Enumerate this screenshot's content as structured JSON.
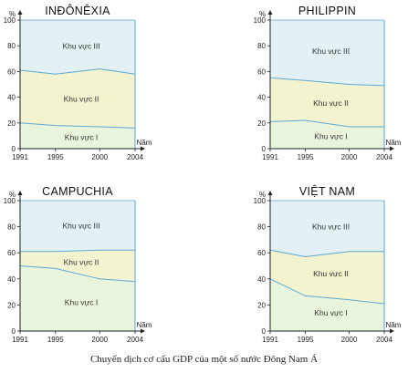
{
  "caption": "Chuyển dịch cơ cấu GDP của một số nước Đông Nam Á",
  "colors": {
    "region_1": "#e9f4dc",
    "region_2": "#f4f3cf",
    "region_3": "#e3f1f4",
    "boundary": "#5aa8d8",
    "axis": "#222222"
  },
  "chart_data": [
    {
      "type": "area",
      "title": "INĐÔNÊXIA",
      "ylabel": "%",
      "xlabel": "Năm",
      "x": [
        1991,
        1995,
        2000,
        2004
      ],
      "x_ticks": [
        "1991",
        "1995",
        "2000",
        "2004"
      ],
      "y_ticks": [
        "0",
        "20",
        "40",
        "60",
        "80",
        "100"
      ],
      "ylim": [
        0,
        100
      ],
      "stacked": true,
      "series": [
        {
          "name": "Khu vực I",
          "values": [
            20,
            18,
            17,
            16
          ]
        },
        {
          "name": "Khu vực II",
          "values": [
            41,
            40,
            45,
            42
          ]
        },
        {
          "name": "Khu vực III",
          "values": [
            39,
            42,
            38,
            42
          ]
        }
      ]
    },
    {
      "type": "area",
      "title": "PHILIPPIN",
      "ylabel": "%",
      "xlabel": "Năm",
      "x": [
        1991,
        1995,
        2000,
        2004
      ],
      "x_ticks": [
        "1991",
        "1995",
        "2000",
        "2004"
      ],
      "y_ticks": [
        "0",
        "20",
        "40",
        "60",
        "80",
        "100"
      ],
      "ylim": [
        0,
        100
      ],
      "stacked": true,
      "series": [
        {
          "name": "Khu vực I",
          "values": [
            21,
            22,
            17,
            17
          ]
        },
        {
          "name": "Khu vực II",
          "values": [
            34,
            31,
            33,
            32
          ]
        },
        {
          "name": "Khu vực III",
          "values": [
            45,
            47,
            50,
            51
          ]
        }
      ]
    },
    {
      "type": "area",
      "title": "CAMPUCHIA",
      "ylabel": "%",
      "xlabel": "Năm",
      "x": [
        1991,
        1995,
        2000,
        2004
      ],
      "x_ticks": [
        "1991",
        "1995",
        "2000",
        "2004"
      ],
      "y_ticks": [
        "0",
        "20",
        "40",
        "60",
        "80",
        "100"
      ],
      "ylim": [
        0,
        100
      ],
      "stacked": true,
      "series": [
        {
          "name": "Khu vực I",
          "values": [
            50,
            48,
            40,
            38
          ]
        },
        {
          "name": "Khu vực II",
          "values": [
            11,
            13,
            22,
            24
          ]
        },
        {
          "name": "Khu vực III",
          "values": [
            39,
            39,
            38,
            38
          ]
        }
      ]
    },
    {
      "type": "area",
      "title": "VIỆT NAM",
      "ylabel": "%",
      "xlabel": "Năm",
      "x": [
        1991,
        1995,
        2000,
        2004
      ],
      "x_ticks": [
        "1991",
        "1995",
        "2000",
        "2004"
      ],
      "y_ticks": [
        "0",
        "20",
        "40",
        "60",
        "80",
        "100"
      ],
      "ylim": [
        0,
        100
      ],
      "stacked": true,
      "series": [
        {
          "name": "Khu vực I",
          "values": [
            40,
            27,
            24,
            21
          ]
        },
        {
          "name": "Khu vực II",
          "values": [
            22,
            30,
            37,
            40
          ]
        },
        {
          "name": "Khu vực III",
          "values": [
            38,
            43,
            39,
            39
          ]
        }
      ]
    }
  ]
}
